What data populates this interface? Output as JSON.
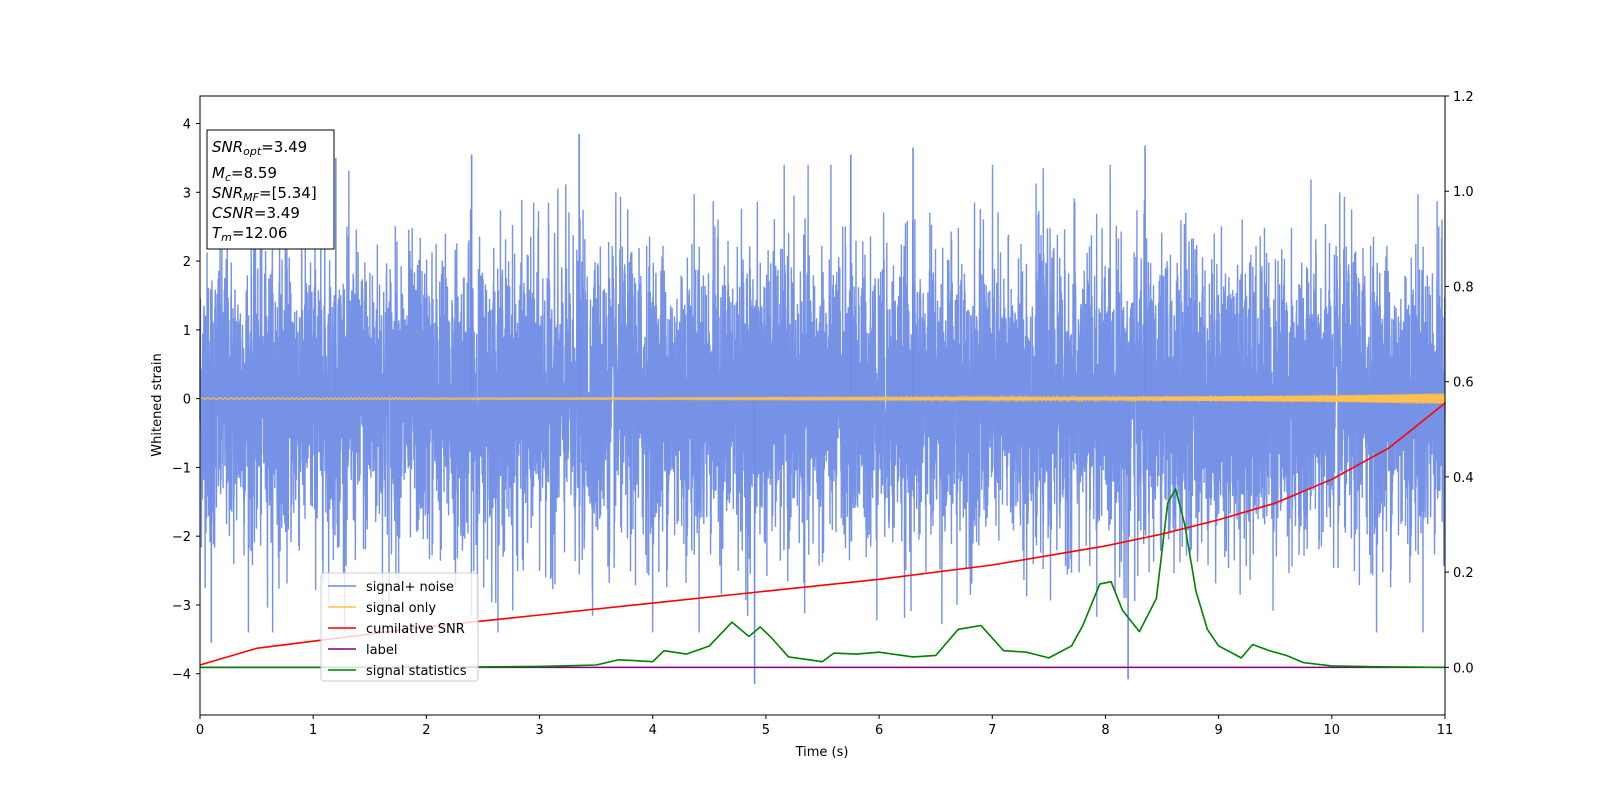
{
  "chart_data": {
    "type": "line",
    "xlabel": "Time (s)",
    "ylabel": "Whitened strain",
    "xlim": [
      0,
      11
    ],
    "ylim": [
      -4.6,
      4.4
    ],
    "y2lim": [
      -0.1,
      1.2
    ],
    "x_ticks": [
      0,
      1,
      2,
      3,
      4,
      5,
      6,
      7,
      8,
      9,
      10,
      11
    ],
    "x_tick_labels": [
      "0",
      "1",
      "2",
      "3",
      "4",
      "5",
      "6",
      "7",
      "8",
      "9",
      "10",
      "11"
    ],
    "y_ticks": [
      4,
      3,
      2,
      1,
      0,
      -1,
      -2,
      -3,
      -4
    ],
    "y_tick_labels": [
      "4",
      "3",
      "2",
      "1",
      "0",
      "−1",
      "−2",
      "−3",
      "−4"
    ],
    "y2_ticks": [
      1.2,
      1.0,
      0.8,
      0.6,
      0.4,
      0.2,
      0.0
    ],
    "y2_tick_labels": [
      "1.2",
      "1.0",
      "0.8",
      "0.6",
      "0.4",
      "0.2",
      "0.0"
    ],
    "legend_location": "lower-left",
    "grid": false,
    "series": [
      {
        "name": "signal+ noise",
        "color": "#6f8ce6",
        "axis": "left",
        "description_values": "noise trace, mostly within -2.5..2.5 with spikes up to ~3.85 and down to ~-4.15",
        "peaks": [
          {
            "x": 3.35,
            "y": 3.85
          },
          {
            "x": 6.3,
            "y": 3.65
          },
          {
            "x": 8.35,
            "y": 3.68
          },
          {
            "x": 4.9,
            "y": -4.15
          },
          {
            "x": 8.2,
            "y": -4.08
          },
          {
            "x": 0.1,
            "y": -3.55
          },
          {
            "x": 1.2,
            "y": 3.5
          },
          {
            "x": 2.4,
            "y": 3.55
          },
          {
            "x": 5.75,
            "y": 3.55
          }
        ]
      },
      {
        "name": "signal only",
        "color": "#ffc04d",
        "axis": "left",
        "x": [
          0,
          4,
          8,
          9,
          10,
          10.5,
          11
        ],
        "amplitude": [
          0.01,
          0.015,
          0.025,
          0.035,
          0.05,
          0.065,
          0.08
        ]
      },
      {
        "name": "cumilative SNR",
        "color": "#ff0000",
        "axis": "right",
        "x": [
          0,
          0.5,
          1,
          2,
          3,
          4,
          5,
          6,
          7,
          8,
          8.5,
          9,
          9.5,
          10,
          10.5,
          11
        ],
        "values": [
          0.005,
          0.04,
          0.055,
          0.085,
          0.11,
          0.135,
          0.16,
          0.185,
          0.215,
          0.255,
          0.28,
          0.31,
          0.345,
          0.395,
          0.46,
          0.555
        ]
      },
      {
        "name": "label",
        "color": "#800080",
        "axis": "right",
        "x": [
          0,
          11
        ],
        "values": [
          0.0,
          0.0
        ]
      },
      {
        "name": "signal statistics",
        "color": "#008000",
        "axis": "right",
        "x": [
          0,
          1,
          2,
          3,
          3.5,
          3.7,
          4.0,
          4.1,
          4.3,
          4.5,
          4.7,
          4.85,
          4.95,
          5.05,
          5.2,
          5.5,
          5.6,
          5.8,
          6.0,
          6.3,
          6.5,
          6.7,
          6.9,
          7.1,
          7.3,
          7.5,
          7.7,
          7.8,
          7.95,
          8.05,
          8.15,
          8.3,
          8.45,
          8.55,
          8.62,
          8.7,
          8.8,
          8.9,
          9.0,
          9.2,
          9.3,
          9.45,
          9.6,
          9.75,
          10,
          10.5,
          11
        ],
        "values": [
          0.0,
          0.0,
          0.0,
          0.002,
          0.005,
          0.016,
          0.012,
          0.035,
          0.028,
          0.045,
          0.095,
          0.065,
          0.085,
          0.062,
          0.022,
          0.012,
          0.03,
          0.028,
          0.032,
          0.022,
          0.025,
          0.08,
          0.088,
          0.035,
          0.032,
          0.02,
          0.045,
          0.088,
          0.175,
          0.18,
          0.12,
          0.075,
          0.145,
          0.345,
          0.375,
          0.3,
          0.16,
          0.08,
          0.045,
          0.02,
          0.048,
          0.035,
          0.025,
          0.01,
          0.003,
          0.001,
          0.0
        ]
      }
    ],
    "annotation_box": {
      "lines": [
        {
          "main": "SNR",
          "sub": "opt",
          "rest": "=3.49"
        },
        {
          "main": "M",
          "sub": "c",
          "rest": "=8.59"
        },
        {
          "main": "SNR",
          "sub": "MF",
          "rest": "=[5.34]"
        },
        {
          "main": "CSNR",
          "sub": "",
          "rest": "=3.49"
        },
        {
          "main": "T",
          "sub": "m",
          "rest": "=12.06"
        }
      ]
    }
  }
}
